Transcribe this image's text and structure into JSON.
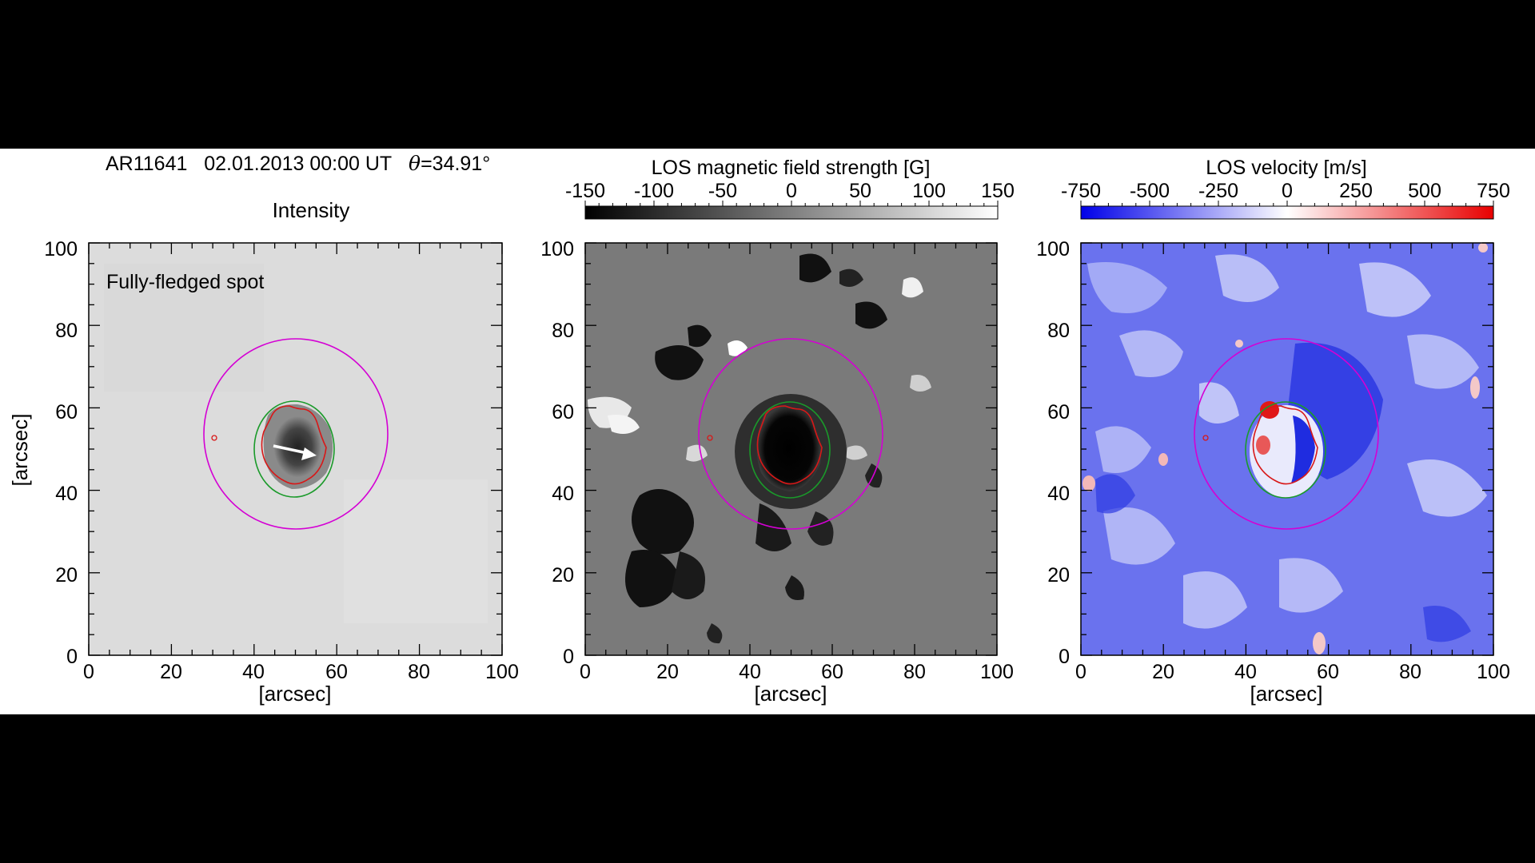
{
  "header": {
    "region": "AR11641",
    "datetime": "02.01.2013 00:00 UT",
    "theta_symbol": "θ",
    "theta_value": "=34.91°"
  },
  "panels": [
    {
      "title": "Intensity",
      "annotation": "Fully-fledged spot",
      "ylabel": "[arcsec]",
      "xlabel": "[arcsec]",
      "xticks": [
        "0",
        "20",
        "40",
        "60",
        "80",
        "100"
      ],
      "yticks": [
        "0",
        "20",
        "40",
        "60",
        "80",
        "100"
      ]
    },
    {
      "title": "LOS magnetic field strength [G]",
      "colorbar_ticks": [
        "-150",
        "-100",
        "-50",
        "0",
        "50",
        "100",
        "150"
      ],
      "xlabel": "[arcsec]",
      "xticks": [
        "0",
        "20",
        "40",
        "60",
        "80",
        "100"
      ],
      "yticks": [
        "0",
        "20",
        "40",
        "60",
        "80",
        "100"
      ]
    },
    {
      "title": "LOS velocity [m/s]",
      "colorbar_ticks": [
        "-750",
        "-500",
        "-250",
        "0",
        "250",
        "500",
        "750"
      ],
      "xlabel": "[arcsec]",
      "xticks": [
        "0",
        "20",
        "40",
        "60",
        "80",
        "100"
      ],
      "yticks": [
        "0",
        "20",
        "40",
        "60",
        "80",
        "100"
      ]
    }
  ],
  "colors": {
    "outer_contour": "#d400d4",
    "penumbra_contour": "#1a9a2a",
    "umbra_contour": "#d81818",
    "velocity_blue": "#1f2fe0",
    "velocity_red": "#e01818"
  }
}
